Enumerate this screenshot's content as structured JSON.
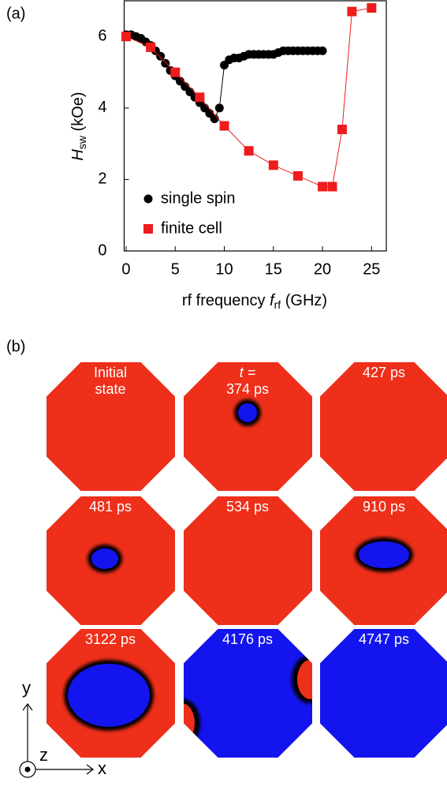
{
  "chart_data": {
    "type": "scatter-line",
    "panel_label": "(a)",
    "x_label": {
      "prefix": "rf frequency ",
      "var": "f",
      "sub": "rf",
      "unit": " (GHz)"
    },
    "y_label": {
      "var": "H",
      "sub": "sw",
      "unit": " (kOe)"
    },
    "xlim": [
      -0.2,
      26.5
    ],
    "xticks": [
      0,
      5,
      10,
      15,
      20,
      25
    ],
    "ylim": [
      0,
      7
    ],
    "yticks": [
      0,
      2,
      4,
      6
    ],
    "legend": "lower left",
    "series": [
      {
        "name": "single spin",
        "color": "#000000",
        "marker": "circle",
        "x": [
          0,
          0.5,
          1,
          1.5,
          2,
          2.5,
          3,
          3.5,
          4,
          4.5,
          5,
          5.5,
          6,
          6.5,
          7,
          7.5,
          8,
          8.5,
          9,
          9.5,
          10,
          10.5,
          11,
          11.5,
          12,
          12.5,
          13,
          13.5,
          14,
          14.5,
          15,
          15.5,
          16,
          16.5,
          17,
          17.5,
          18,
          18.5,
          19,
          19.5,
          20
        ],
        "values": [
          6.05,
          6.05,
          6.0,
          5.95,
          5.85,
          5.75,
          5.6,
          5.45,
          5.25,
          5.05,
          4.9,
          4.75,
          4.6,
          4.45,
          4.3,
          4.15,
          4.0,
          3.85,
          3.7,
          4.0,
          5.2,
          5.35,
          5.4,
          5.4,
          5.45,
          5.5,
          5.5,
          5.5,
          5.5,
          5.5,
          5.5,
          5.55,
          5.6,
          5.6,
          5.6,
          5.6,
          5.6,
          5.6,
          5.6,
          5.6,
          5.6
        ]
      },
      {
        "name": "finite cell",
        "color": "#ee1c1c",
        "marker": "square",
        "x": [
          0,
          2.5,
          5,
          7.5,
          10,
          12.5,
          15,
          17.5,
          20,
          21,
          22,
          23,
          25
        ],
        "values": [
          6.0,
          5.7,
          5.0,
          4.3,
          3.5,
          2.8,
          2.4,
          2.1,
          1.8,
          1.8,
          3.4,
          6.7,
          6.8
        ]
      }
    ]
  },
  "panel_b": {
    "panel_label": "(b)",
    "frames": [
      {
        "lines": [
          "Initial",
          "state"
        ]
      },
      {
        "lines": [
          "t =",
          "374 ps"
        ]
      },
      {
        "lines": [
          "427 ps"
        ]
      },
      {
        "lines": [
          "481 ps"
        ]
      },
      {
        "lines": [
          "534 ps"
        ]
      },
      {
        "lines": [
          "910 ps"
        ]
      },
      {
        "lines": [
          "3122 ps"
        ]
      },
      {
        "lines": [
          "4176 ps"
        ]
      },
      {
        "lines": [
          "4747 ps"
        ]
      }
    ],
    "axes": {
      "y": "y",
      "z": "z",
      "x": "x"
    }
  }
}
